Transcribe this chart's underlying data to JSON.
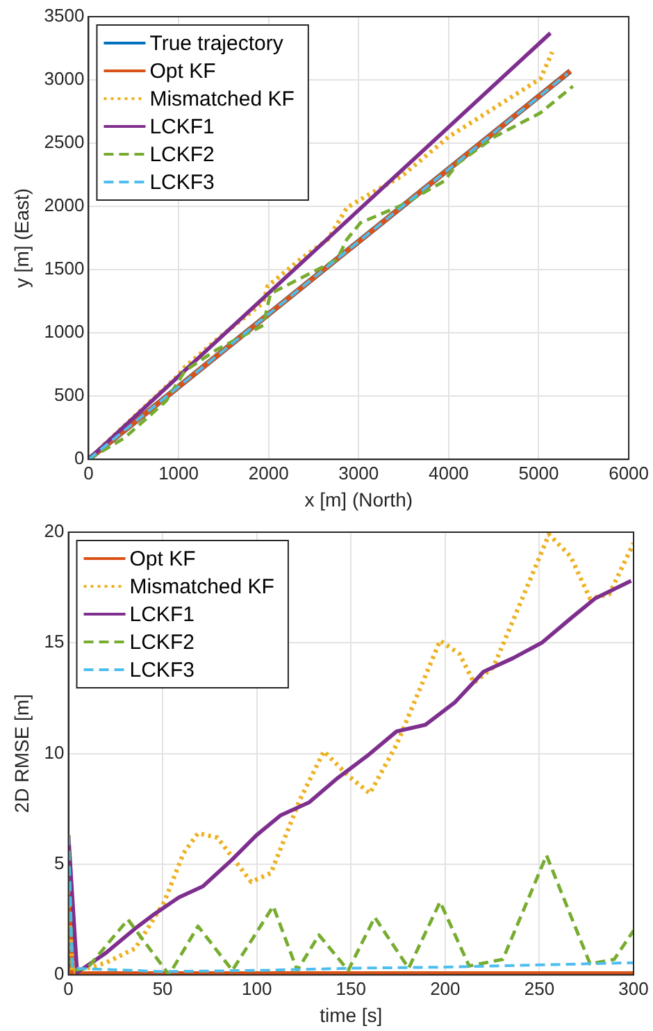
{
  "chart_data": [
    {
      "type": "line",
      "xlabel": "x [m] (North)",
      "ylabel": "y [m] (East)",
      "xlim": [
        0,
        6000
      ],
      "xticks": [
        0,
        1000,
        2000,
        3000,
        4000,
        5000,
        6000
      ],
      "ylim": [
        0,
        3500
      ],
      "yticks": [
        0,
        500,
        1000,
        1500,
        2000,
        2500,
        3000,
        3500
      ],
      "grid": true,
      "legend": "top left",
      "marker": "none",
      "series": [
        {
          "name": "True trajectory",
          "color": "#0072bd",
          "line_style": "solid",
          "x": [
            0,
            2700,
            5350
          ],
          "values": [
            0,
            1550,
            3070
          ]
        },
        {
          "name": "Opt KF",
          "color": "#d95319",
          "line_style": "solid",
          "x": [
            0,
            2700,
            5350
          ],
          "values": [
            0,
            1550,
            3070
          ]
        },
        {
          "name": "Mismatched KF",
          "color": "#edb120",
          "line_style": "dotted",
          "x": [
            0,
            990,
            1070,
            1430,
            1940,
            1990,
            2350,
            2660,
            2870,
            3080,
            3480,
            4000,
            4510,
            5020,
            5150
          ],
          "values": [
            0,
            660,
            730,
            950,
            1240,
            1370,
            1580,
            1740,
            1990,
            2080,
            2240,
            2550,
            2780,
            3010,
            3220
          ]
        },
        {
          "name": "LCKF1",
          "color": "#7e2f8e",
          "line_style": "solid",
          "x": [
            0,
            5130
          ],
          "values": [
            0,
            3370
          ]
        },
        {
          "name": "LCKF2",
          "color": "#77ac30",
          "line_style": "dashed",
          "x": [
            0,
            400,
            860,
            1070,
            1430,
            1940,
            2020,
            2460,
            2760,
            2870,
            3020,
            3480,
            3950,
            4100,
            4510,
            5020,
            5380
          ],
          "values": [
            0,
            170,
            460,
            700,
            870,
            1060,
            1310,
            1470,
            1580,
            1740,
            1870,
            2010,
            2200,
            2340,
            2550,
            2740,
            2950
          ]
        },
        {
          "name": "LCKF3",
          "color": "#4dbeee",
          "line_style": "dashed",
          "x": [
            0,
            2700,
            5320
          ],
          "values": [
            0,
            1550,
            3050
          ]
        }
      ]
    },
    {
      "type": "line",
      "xlabel": "time [s]",
      "ylabel": "2D RMSE [m]",
      "xlim": [
        0,
        300
      ],
      "xticks": [
        0,
        50,
        100,
        150,
        200,
        250,
        300
      ],
      "ylim": [
        0,
        20
      ],
      "yticks": [
        0,
        5,
        10,
        15,
        20
      ],
      "grid": true,
      "legend": "top left",
      "marker": "none",
      "series": [
        {
          "name": "Opt KF",
          "color": "#d95319",
          "line_style": "solid",
          "x": [
            0,
            2,
            100,
            200,
            300
          ],
          "values": [
            5.5,
            0.05,
            0.05,
            0.05,
            0.05
          ]
        },
        {
          "name": "Mismatched KF",
          "color": "#edb120",
          "line_style": "dotted",
          "x": [
            0,
            2,
            20,
            35.5,
            50.9,
            61.1,
            68.8,
            79.1,
            97,
            107.5,
            122.8,
            135.6,
            148.5,
            160,
            174.2,
            197.3,
            207.6,
            215.3,
            225.6,
            240.9,
            255.1,
            266.6,
            276.9,
            287.1,
            300
          ],
          "values": [
            6.3,
            0.1,
            0.55,
            1.2,
            3.3,
            5.5,
            6.4,
            6.2,
            4.2,
            4.6,
            7.9,
            10.1,
            9.0,
            8.2,
            10.4,
            15.1,
            14.5,
            13.2,
            13.9,
            17.0,
            19.9,
            18.9,
            17.0,
            17.2,
            19.5
          ]
        },
        {
          "name": "LCKF1",
          "color": "#7e2f8e",
          "line_style": "solid",
          "x": [
            0,
            4.6,
            20,
            35.5,
            45.7,
            58.6,
            71.4,
            86.8,
            99.7,
            112.5,
            127.9,
            143,
            158.7,
            174.2,
            189.5,
            205,
            220.4,
            235.8,
            251.2,
            266.6,
            279.5,
            298.7
          ],
          "values": [
            6.3,
            0.1,
            1.0,
            2.1,
            2.75,
            3.5,
            4.0,
            5.2,
            6.3,
            7.2,
            7.8,
            8.9,
            9.9,
            11.0,
            11.3,
            12.3,
            13.7,
            14.3,
            15.0,
            16.1,
            17.0,
            17.8
          ]
        },
        {
          "name": "LCKF2",
          "color": "#77ac30",
          "line_style": "dashed",
          "x": [
            0,
            2,
            10,
            31.6,
            53.4,
            68.8,
            87,
            108.7,
            121.5,
            133,
            148.5,
            162.6,
            180.6,
            197.3,
            212.7,
            230.6,
            253.8,
            276.9,
            289.7,
            300
          ],
          "values": [
            6.3,
            0.2,
            0.3,
            2.5,
            0,
            2.2,
            0.2,
            3.1,
            0.2,
            1.8,
            0.2,
            2.6,
            0.3,
            3.3,
            0.4,
            0.7,
            5.4,
            0.5,
            0.7,
            2.0
          ]
        },
        {
          "name": "LCKF3",
          "color": "#4dbeee",
          "line_style": "dashed",
          "x": [
            0,
            2,
            50,
            100,
            150,
            200,
            250,
            300
          ],
          "values": [
            6.3,
            0.3,
            0.15,
            0.2,
            0.3,
            0.35,
            0.45,
            0.55
          ]
        }
      ]
    }
  ]
}
